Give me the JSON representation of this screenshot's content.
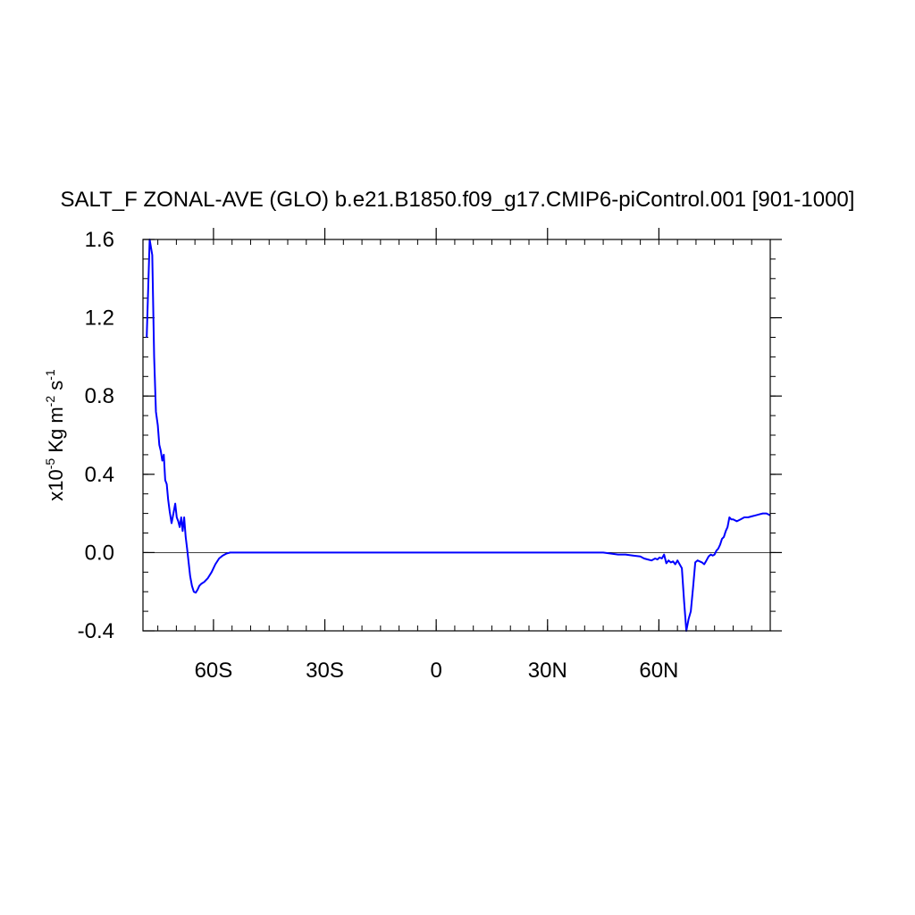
{
  "chart_data": {
    "type": "line",
    "title": "SALT_F ZONAL-AVE (GLO) b.e21.B1850.f09_g17.CMIP6-piControl.001 [901-1000]",
    "ylabel": {
      "prefix": "x10",
      "exp": "-5",
      "unit1": " Kg m",
      "exp2": "-2",
      "unit2": " s",
      "exp3": "-1"
    },
    "xlim": [
      -79,
      90
    ],
    "ylim": [
      -0.4,
      1.6
    ],
    "x_ticks": [
      {
        "value": -60,
        "label": "60S"
      },
      {
        "value": -30,
        "label": "30S"
      },
      {
        "value": 0,
        "label": "0"
      },
      {
        "value": 30,
        "label": "30N"
      },
      {
        "value": 60,
        "label": "60N"
      }
    ],
    "x_minor_step": 5,
    "y_ticks": [
      {
        "value": -0.4,
        "label": "-0.4"
      },
      {
        "value": 0.0,
        "label": "0.0"
      },
      {
        "value": 0.4,
        "label": "0.4"
      },
      {
        "value": 0.8,
        "label": "0.8"
      },
      {
        "value": 1.2,
        "label": "1.2"
      },
      {
        "value": 1.6,
        "label": "1.6"
      }
    ],
    "y_minor_step": 0.1,
    "reference_line": {
      "y": 0.0,
      "color": "#000000"
    },
    "series": [
      {
        "color": "#0000ff",
        "x": [
          -78,
          -77.2,
          -76.5,
          -76,
          -75.5,
          -75,
          -74.6,
          -74.2,
          -73.8,
          -73.4,
          -73,
          -72.6,
          -72.2,
          -71.8,
          -71.3,
          -70.8,
          -70.3,
          -69.9,
          -69.5,
          -69.1,
          -68.7,
          -68.3,
          -67.9,
          -67.5,
          -67.1,
          -66.7,
          -66.3,
          -65.8,
          -65.3,
          -64.8,
          -64.3,
          -63.8,
          -63.3,
          -62.5,
          -61.5,
          -60.5,
          -59.5,
          -58.5,
          -57.5,
          -56.5,
          -55.5,
          -54.5,
          -53.5,
          -52.5,
          -51,
          -49,
          -45,
          -40,
          -30,
          -20,
          -10,
          0,
          10,
          20,
          30,
          40,
          45,
          47,
          49,
          51,
          53,
          55,
          56,
          57,
          58,
          59,
          59.6,
          60.2,
          60.8,
          61.4,
          62,
          62.6,
          63.2,
          63.8,
          64.4,
          65,
          65.6,
          66.2,
          66.8,
          67.4,
          68,
          68.6,
          69.2,
          69.8,
          70.4,
          71,
          71.6,
          72.2,
          72.8,
          73.4,
          74,
          74.5,
          75,
          75.5,
          76,
          76.5,
          77,
          77.5,
          78,
          78.5,
          79,
          79.5,
          80,
          81,
          82,
          83,
          84,
          85,
          86,
          87,
          88,
          89,
          90
        ],
        "y": [
          1.1,
          1.6,
          1.52,
          1.0,
          0.72,
          0.65,
          0.55,
          0.52,
          0.47,
          0.5,
          0.37,
          0.35,
          0.27,
          0.21,
          0.15,
          0.2,
          0.25,
          0.18,
          0.16,
          0.13,
          0.18,
          0.11,
          0.18,
          0.08,
          0.02,
          -0.05,
          -0.12,
          -0.17,
          -0.2,
          -0.205,
          -0.19,
          -0.17,
          -0.16,
          -0.15,
          -0.13,
          -0.1,
          -0.06,
          -0.03,
          -0.015,
          -0.005,
          0.0,
          0.0,
          0.0,
          0.0,
          0.0,
          0.0,
          0.0,
          0.0,
          0.0,
          0.0,
          0.0,
          0.0,
          0.0,
          0.0,
          0.0,
          0.0,
          0.0,
          -0.005,
          -0.01,
          -0.01,
          -0.015,
          -0.02,
          -0.03,
          -0.035,
          -0.04,
          -0.03,
          -0.035,
          -0.025,
          -0.03,
          -0.01,
          -0.055,
          -0.04,
          -0.05,
          -0.045,
          -0.06,
          -0.04,
          -0.06,
          -0.08,
          -0.25,
          -0.4,
          -0.34,
          -0.3,
          -0.18,
          -0.05,
          -0.04,
          -0.045,
          -0.05,
          -0.06,
          -0.04,
          -0.02,
          -0.01,
          -0.015,
          -0.01,
          0.01,
          0.02,
          0.04,
          0.07,
          0.08,
          0.11,
          0.13,
          0.18,
          0.17,
          0.17,
          0.16,
          0.17,
          0.18,
          0.18,
          0.185,
          0.19,
          0.195,
          0.2,
          0.2,
          0.19
        ]
      }
    ]
  }
}
